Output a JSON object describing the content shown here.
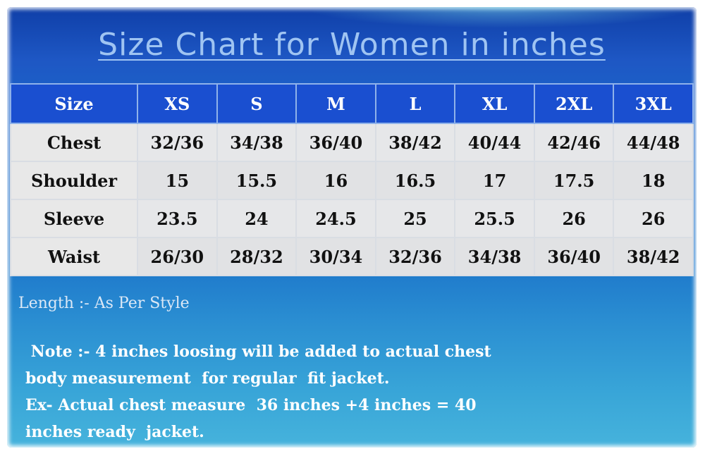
{
  "title": "Size Chart for Women in inches",
  "table": {
    "header": [
      "Size",
      "XS",
      "S",
      "M",
      "L",
      "XL",
      "2XL",
      "3XL"
    ],
    "rows": [
      {
        "label": "Chest",
        "values": [
          "32/36",
          "34/38",
          "36/40",
          "38/42",
          "40/44",
          "42/46",
          "44/48"
        ]
      },
      {
        "label": "Shoulder",
        "values": [
          "15",
          "15.5",
          "16",
          "16.5",
          "17",
          "17.5",
          "18"
        ]
      },
      {
        "label": "Sleeve",
        "values": [
          "23.5",
          "24",
          "24.5",
          "25",
          "25.5",
          "26",
          "26"
        ]
      },
      {
        "label": "Waist",
        "values": [
          "26/30",
          "28/32",
          "30/34",
          "32/36",
          "34/38",
          "36/40",
          "38/42"
        ]
      }
    ]
  },
  "length_note": "Length :- As Per Style",
  "note_lines": [
    " Note :- 4 inches loosing will be added to actual chest",
    "body measurement  for regular  fit jacket.",
    "Ex- Actual chest measure  36 inches +4 inches = 40",
    "inches ready  jacket."
  ]
}
